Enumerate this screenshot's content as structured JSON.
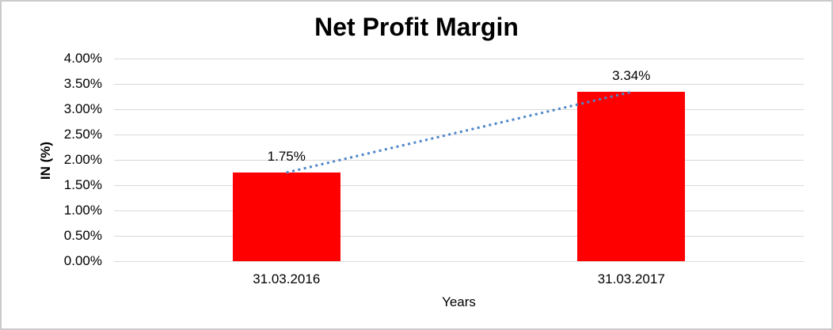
{
  "chart_data": {
    "type": "bar",
    "title": "Net Profit Margin",
    "categories": [
      "31.03.2016",
      "31.03.2017"
    ],
    "series": [
      {
        "name": "Net Profit Margin",
        "values": [
          1.75,
          3.34
        ]
      }
    ],
    "data_labels": [
      "1.75%",
      "3.34%"
    ],
    "xlabel": "Years",
    "ylabel": "IN (%)",
    "ylim": [
      0,
      4
    ],
    "ytick_step": 0.5,
    "ytick_labels": [
      "0.00%",
      "0.50%",
      "1.00%",
      "1.50%",
      "2.00%",
      "2.50%",
      "3.00%",
      "3.50%",
      "4.00%"
    ],
    "grid": true,
    "legend": "none",
    "bar_color": "#ff0000",
    "gridline_color": "#d9d9d9",
    "trendline": {
      "type": "linear",
      "style": "dotted",
      "color": "#4e86c8",
      "from_value": 1.75,
      "to_value": 3.34
    }
  }
}
